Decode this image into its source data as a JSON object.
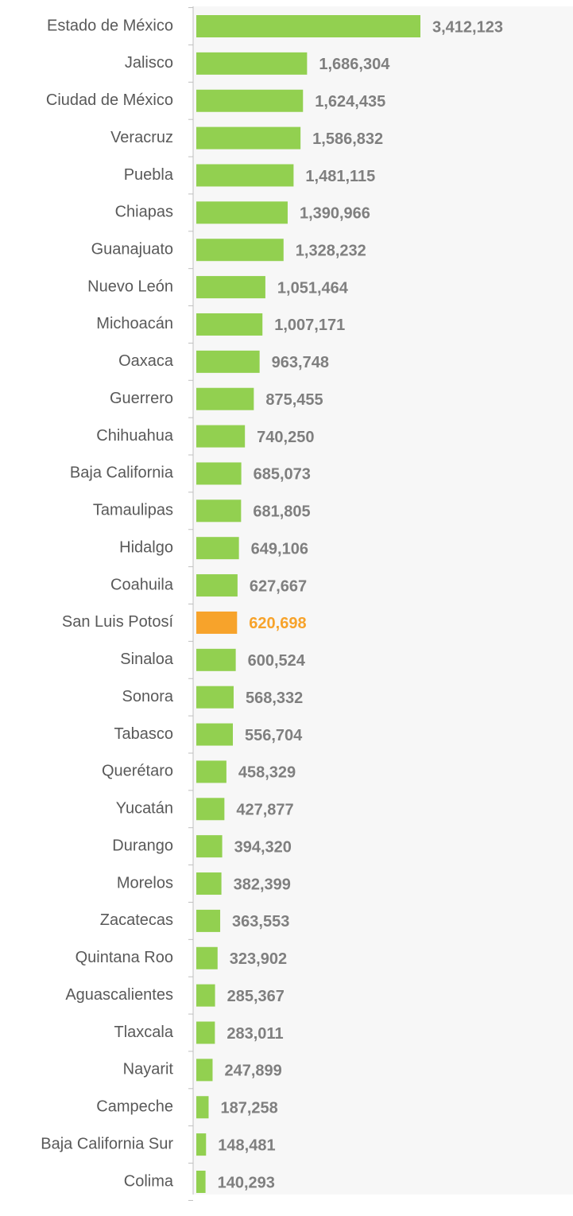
{
  "chart_data": {
    "type": "barh",
    "categories": [
      "Estado de México",
      "Jalisco",
      "Ciudad de México",
      "Veracruz",
      "Puebla",
      "Chiapas",
      "Guanajuato",
      "Nuevo León",
      "Michoacán",
      "Oaxaca",
      "Guerrero",
      "Chihuahua",
      "Baja California",
      "Tamaulipas",
      "Hidalgo",
      "Coahuila",
      "San Luis Potosí",
      "Sinaloa",
      "Sonora",
      "Tabasco",
      "Querétaro",
      "Yucatán",
      "Durango",
      "Morelos",
      "Zacatecas",
      "Quintana Roo",
      "Aguascalientes",
      "Tlaxcala",
      "Nayarit",
      "Campeche",
      "Baja California Sur",
      "Colima"
    ],
    "values": [
      3412123,
      1686304,
      1624435,
      1586832,
      1481115,
      1390966,
      1328232,
      1051464,
      1007171,
      963748,
      875455,
      740250,
      685073,
      681805,
      649106,
      627667,
      620698,
      600524,
      568332,
      556704,
      458329,
      427877,
      394320,
      382399,
      363553,
      323902,
      285367,
      283011,
      247899,
      187258,
      148481,
      140293
    ],
    "value_labels": [
      "3,412,123",
      "1,686,304",
      "1,624,435",
      "1,586,832",
      "1,481,115",
      "1,390,966",
      "1,328,232",
      "1,051,464",
      "1,007,171",
      "963,748",
      "875,455",
      "740,250",
      "685,073",
      "681,805",
      "649,106",
      "627,667",
      "620,698",
      "600,524",
      "568,332",
      "556,704",
      "458,329",
      "427,877",
      "394,320",
      "382,399",
      "363,553",
      "323,902",
      "285,367",
      "283,011",
      "247,899",
      "187,258",
      "148,481",
      "140,293"
    ],
    "colors": [
      "#92d050",
      "#92d050",
      "#92d050",
      "#92d050",
      "#92d050",
      "#92d050",
      "#92d050",
      "#92d050",
      "#92d050",
      "#92d050",
      "#92d050",
      "#92d050",
      "#92d050",
      "#92d050",
      "#92d050",
      "#92d050",
      "#f7a32b",
      "#92d050",
      "#92d050",
      "#92d050",
      "#92d050",
      "#92d050",
      "#92d050",
      "#92d050",
      "#92d050",
      "#92d050",
      "#92d050",
      "#92d050",
      "#92d050",
      "#92d050",
      "#92d050",
      "#92d050"
    ],
    "label_colors": [
      "#7f7f7f",
      "#7f7f7f",
      "#7f7f7f",
      "#7f7f7f",
      "#7f7f7f",
      "#7f7f7f",
      "#7f7f7f",
      "#7f7f7f",
      "#7f7f7f",
      "#7f7f7f",
      "#7f7f7f",
      "#7f7f7f",
      "#7f7f7f",
      "#7f7f7f",
      "#7f7f7f",
      "#7f7f7f",
      "#f7a32b",
      "#7f7f7f",
      "#7f7f7f",
      "#7f7f7f",
      "#7f7f7f",
      "#7f7f7f",
      "#7f7f7f",
      "#7f7f7f",
      "#7f7f7f",
      "#7f7f7f",
      "#7f7f7f",
      "#7f7f7f",
      "#7f7f7f",
      "#7f7f7f",
      "#7f7f7f",
      "#7f7f7f"
    ]
  }
}
